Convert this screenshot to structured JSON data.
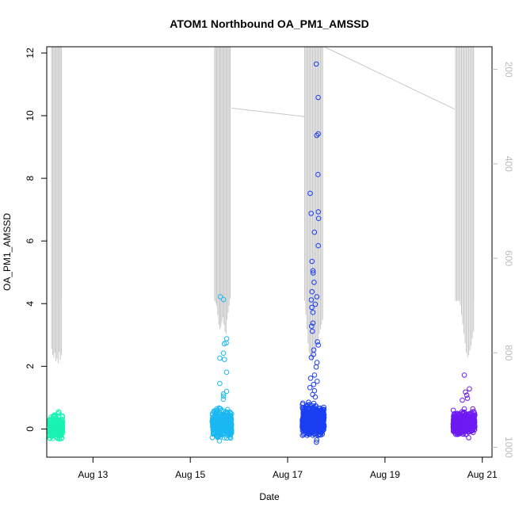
{
  "chart_data": {
    "type": "scatter",
    "title": "ATOM1 Northbound OA_PM1_AMSSD",
    "xlabel": "Date",
    "ylabel": "OA_PM1_AMSSD",
    "x_ticks": [
      {
        "day": 13,
        "label": "Aug 13"
      },
      {
        "day": 15,
        "label": "Aug 15"
      },
      {
        "day": 17,
        "label": "Aug 17"
      },
      {
        "day": 19,
        "label": "Aug 19"
      },
      {
        "day": 21,
        "label": "Aug 21"
      }
    ],
    "xlim": [
      12.05,
      21.2
    ],
    "y_ticks": [
      0,
      2,
      4,
      6,
      8,
      10,
      12
    ],
    "ylim": [
      -0.9,
      12.2
    ],
    "y2_ticks": [
      200,
      400,
      600,
      800,
      1000
    ],
    "y2lim": [
      1021,
      152
    ],
    "colors": {
      "aug12": "#19f2b3",
      "aug15": "#1ab8f2",
      "aug17": "#1a3ef2",
      "aug20": "#6e1af2",
      "pressure": "#c8c8c8"
    },
    "clusters": [
      {
        "day_start": 12.1,
        "day_end": 12.38,
        "center": 0.05,
        "spread": 0.16,
        "n": 260,
        "color_key": "aug12",
        "outliers": [
          0.52,
          0.55,
          0.48,
          0.45,
          -0.32
        ]
      },
      {
        "day_start": 15.45,
        "day_end": 15.85,
        "center": 0.15,
        "spread": 0.2,
        "n": 420,
        "color_key": "aug15",
        "outliers": [
          4.22,
          4.13,
          2.88,
          2.75,
          2.72,
          2.42,
          2.26,
          2.22,
          1.81,
          1.45,
          1.2,
          1.12,
          1.05,
          0.95,
          -0.38
        ]
      },
      {
        "day_start": 17.3,
        "day_end": 17.75,
        "center": 0.28,
        "spread": 0.22,
        "n": 520,
        "color_key": "aug17",
        "outliers": [
          11.65,
          10.58,
          9.42,
          9.37,
          8.12,
          7.52,
          6.93,
          6.88,
          6.72,
          6.28,
          5.85,
          5.35,
          5.05,
          4.98,
          4.68,
          4.38,
          4.22,
          4.12,
          3.98,
          3.88,
          3.72,
          3.38,
          3.28,
          3.12,
          2.78,
          2.68,
          2.52,
          2.38,
          2.28,
          2.12,
          1.98,
          1.72,
          1.62,
          1.52,
          1.42,
          1.32,
          1.22,
          1.1,
          1.02,
          -0.35,
          -0.42
        ]
      },
      {
        "day_start": 20.4,
        "day_end": 20.85,
        "center": 0.2,
        "spread": 0.17,
        "n": 420,
        "color_key": "aug20",
        "outliers": [
          1.72,
          1.28,
          1.18,
          1.08,
          0.98,
          0.92,
          -0.28
        ]
      }
    ],
    "pressure_segments": [
      {
        "day_start": 12.15,
        "day_end": 12.35,
        "bottoms": [
          792,
          804,
          810,
          800,
          818,
          812,
          822,
          798,
          815,
          806
        ],
        "tops": [
          152,
          152,
          152,
          152,
          152,
          152,
          152,
          152,
          152,
          152
        ],
        "final_bottom": 690
      },
      {
        "day_start": 15.5,
        "day_end": 15.82,
        "bottoms": [
          690,
          695,
          700,
          720,
          740,
          750,
          745,
          735,
          725,
          740,
          755,
          760,
          730,
          715,
          700,
          685
        ],
        "tops": [
          152,
          152,
          152,
          152,
          152,
          152,
          152,
          152,
          152,
          152,
          152,
          152,
          152,
          152,
          152,
          152
        ],
        "final_bottom": 280
      },
      {
        "day_start": 17.35,
        "day_end": 17.72,
        "bottoms": [
          690,
          720,
          750,
          780,
          800,
          810,
          815,
          820,
          810,
          800,
          790,
          780,
          770,
          760,
          750,
          740,
          730
        ],
        "tops": [
          152,
          152,
          152,
          152,
          152,
          152,
          152,
          152,
          152,
          152,
          152,
          152,
          152,
          152,
          152,
          152,
          152
        ],
        "final_bottom": 152
      },
      {
        "day_start": 20.45,
        "day_end": 20.82,
        "bottoms": [
          690,
          690,
          690,
          690,
          700,
          720,
          740,
          760,
          780,
          800,
          810,
          805,
          795,
          785,
          770,
          755
        ],
        "tops": [
          152,
          152,
          152,
          152,
          152,
          152,
          152,
          152,
          152,
          152,
          152,
          152,
          152,
          152,
          152,
          152
        ],
        "final_bottom": 690
      }
    ],
    "pressure_links": [
      {
        "from": [
          15.85,
          282
        ],
        "to": [
          17.35,
          300
        ]
      },
      {
        "from": [
          17.75,
          152
        ],
        "to": [
          20.43,
          284
        ]
      }
    ]
  }
}
